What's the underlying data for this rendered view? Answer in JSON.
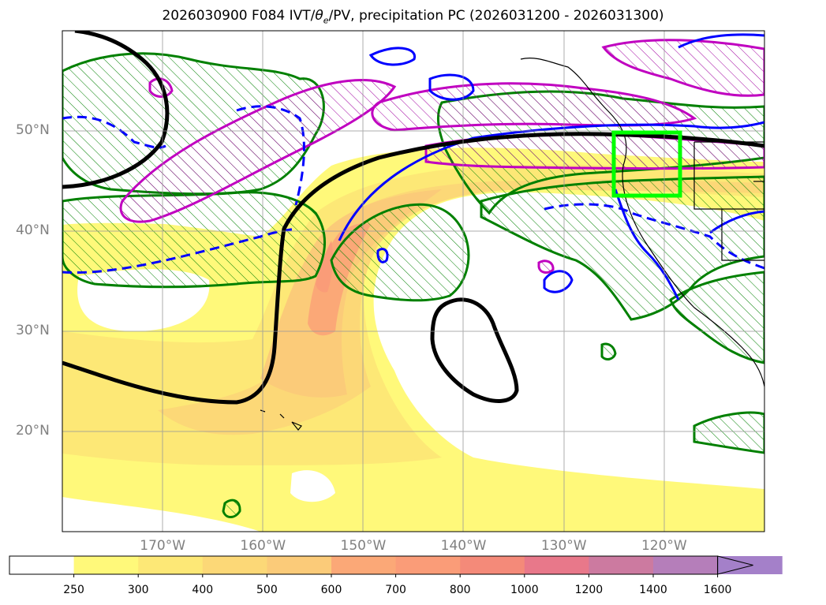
{
  "title": "2026030900 F084 IVT/θe/PV, precipitation PC (2026031200 - 2026031300)",
  "title_parts": {
    "prefix": "2026030900 F084 IVT/",
    "theta": "θ",
    "sub": "e",
    "suffix": "/PV, precipitation PC (2026031200 - 2026031300)"
  },
  "map": {
    "projection": "lat-lon",
    "lon_range": [
      -180,
      -110
    ],
    "lat_range": [
      10,
      60
    ],
    "lat_labels": [
      {
        "text": "50°N",
        "lat": 50
      },
      {
        "text": "40°N",
        "lat": 40
      },
      {
        "text": "30°N",
        "lat": 30
      },
      {
        "text": "20°N",
        "lat": 20
      }
    ],
    "lon_labels": [
      {
        "text": "170°W",
        "lon": -170
      },
      {
        "text": "160°W",
        "lon": -160
      },
      {
        "text": "150°W",
        "lon": -150
      },
      {
        "text": "140°W",
        "lon": -140
      },
      {
        "text": "130°W",
        "lon": -130
      },
      {
        "text": "120°W",
        "lon": -120
      }
    ],
    "grid": true,
    "highlight_box": {
      "lon_min": -125,
      "lon_max": -118.5,
      "lat_min": 44,
      "lat_max": 49.5,
      "color": "#00ff00"
    },
    "contour_colors": {
      "pv": "#000000",
      "theta_e": "#0000ff",
      "precip_pc": "#008000",
      "wind": "#c000c0"
    }
  },
  "colorbar": {
    "labels": [
      "250",
      "300",
      "400",
      "500",
      "600",
      "700",
      "800",
      "1000",
      "1200",
      "1400",
      "1600"
    ],
    "colors": [
      "#ffffff",
      "#fff97a",
      "#fde876",
      "#fcd877",
      "#fbcb79",
      "#fba877",
      "#fa9c78",
      "#f48a79",
      "#e8788a",
      "#cc7aa0",
      "#b57eba",
      "#a480c9"
    ],
    "extend": "max"
  }
}
